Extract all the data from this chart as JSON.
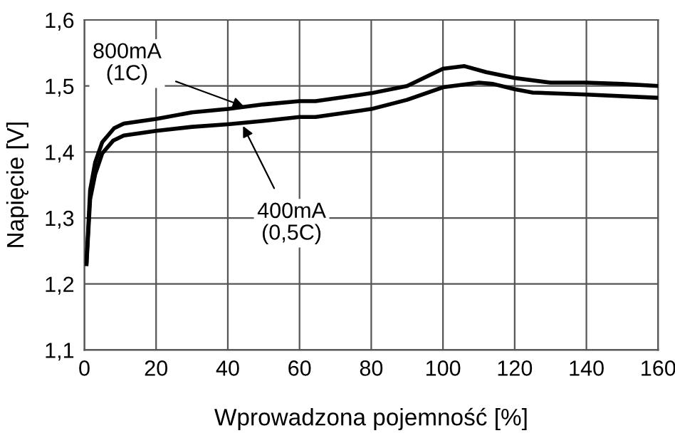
{
  "chart_data": {
    "type": "line",
    "xlabel": "Wprowadzona pojemność [%]",
    "ylabel": "Napięcie [V]",
    "xlim": [
      0,
      160
    ],
    "xticks": [
      0,
      20,
      40,
      60,
      80,
      100,
      120,
      140,
      160
    ],
    "ylim": [
      1.1,
      1.6
    ],
    "yticks": [
      {
        "value": 1.1,
        "label": "1,1"
      },
      {
        "value": 1.2,
        "label": "1,2"
      },
      {
        "value": 1.3,
        "label": "1,3"
      },
      {
        "value": 1.4,
        "label": "1,4"
      },
      {
        "value": 1.5,
        "label": "1,5"
      },
      {
        "value": 1.6,
        "label": "1,6"
      }
    ],
    "grid": true,
    "marker": "none",
    "line_style": "solid",
    "series": [
      {
        "color": "#000000",
        "x": [
          0.6,
          1.6,
          3,
          5,
          8.3,
          11,
          20,
          30,
          40,
          50,
          60,
          64.5,
          80,
          90,
          100,
          106,
          112,
          120,
          130,
          140,
          150,
          160
        ],
        "values": [
          1.233,
          1.342,
          1.384,
          1.415,
          1.436,
          1.443,
          1.45,
          1.46,
          1.465,
          1.472,
          1.477,
          1.477,
          1.489,
          1.5,
          1.526,
          1.53,
          1.521,
          1.512,
          1.505,
          1.505,
          1.503,
          1.5
        ]
      },
      {
        "color": "#000000",
        "x": [
          0.6,
          1.6,
          3,
          5,
          8,
          11,
          20,
          30,
          40,
          50,
          60,
          64.5,
          80,
          90,
          100,
          110,
          114,
          120,
          125,
          140,
          160
        ],
        "values": [
          1.23,
          1.328,
          1.366,
          1.398,
          1.417,
          1.425,
          1.432,
          1.438,
          1.442,
          1.447,
          1.453,
          1.453,
          1.465,
          1.479,
          1.498,
          1.505,
          1.503,
          1.495,
          1.49,
          1.487,
          1.482
        ]
      }
    ],
    "annotations": [
      {
        "text": "800mA\n(1C)",
        "x": 45,
        "y": 1.468
      },
      {
        "text": "400mA\n(0,5C)",
        "x": 44,
        "y": 1.442
      }
    ]
  }
}
